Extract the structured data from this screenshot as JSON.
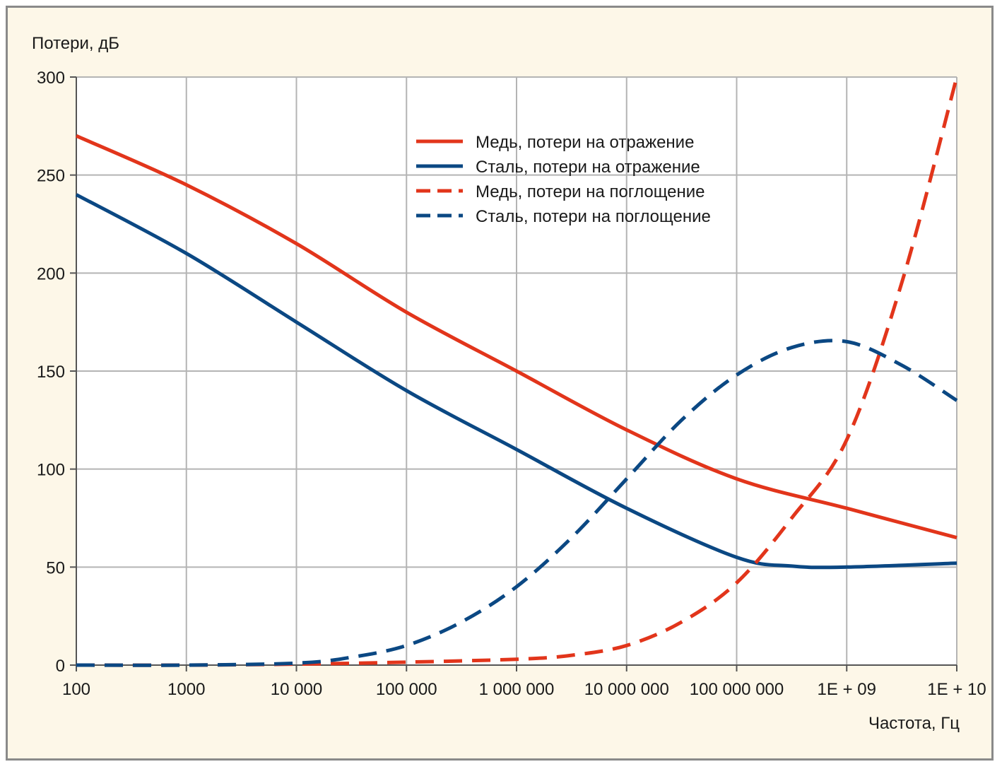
{
  "chart_data": {
    "type": "line",
    "ylabel": "Потери, дБ",
    "xlabel": "Частота, Гц",
    "x_scale": "log",
    "x_exponents": [
      2,
      3,
      4,
      5,
      6,
      7,
      8,
      9,
      10
    ],
    "x_tick_labels": [
      "100",
      "1000",
      "10 000",
      "100 000",
      "1 000 000",
      "10 000 000",
      "100 000 000",
      "1E + 09",
      "1E + 10"
    ],
    "ylim": [
      0,
      300
    ],
    "y_ticks": [
      0,
      50,
      100,
      150,
      200,
      250,
      300
    ],
    "y_tick_labels": [
      "0",
      "50",
      "100",
      "150",
      "200",
      "250",
      "300"
    ],
    "grid": true,
    "legend_position": "top-center",
    "series": [
      {
        "name": "Медь, потери на отражение",
        "color": "#e2351b",
        "style": "solid",
        "points": [
          [
            2,
            270
          ],
          [
            3,
            245
          ],
          [
            4,
            215
          ],
          [
            5,
            180
          ],
          [
            6,
            150
          ],
          [
            7,
            120
          ],
          [
            8,
            95
          ],
          [
            9,
            80
          ],
          [
            10,
            65
          ]
        ]
      },
      {
        "name": "Сталь, потери на отражение",
        "color": "#0b4883",
        "style": "solid",
        "points": [
          [
            2,
            240
          ],
          [
            3,
            210
          ],
          [
            4,
            175
          ],
          [
            5,
            140
          ],
          [
            6,
            110
          ],
          [
            7,
            80
          ],
          [
            8,
            55
          ],
          [
            8.5,
            50.5
          ],
          [
            9,
            50
          ],
          [
            10,
            52
          ]
        ]
      },
      {
        "name": "Медь, потери на поглощение",
        "color": "#e2351b",
        "style": "dashed",
        "points": [
          [
            2,
            0
          ],
          [
            3,
            0
          ],
          [
            4,
            0.5
          ],
          [
            5,
            1.5
          ],
          [
            6,
            3
          ],
          [
            6.5,
            5
          ],
          [
            7,
            10
          ],
          [
            7.5,
            22
          ],
          [
            8,
            42
          ],
          [
            8.5,
            75
          ],
          [
            9,
            115
          ],
          [
            9.5,
            195
          ],
          [
            10,
            300
          ]
        ]
      },
      {
        "name": "Сталь, потери на поглощение",
        "color": "#0b4883",
        "style": "dashed",
        "points": [
          [
            2,
            0
          ],
          [
            3,
            0
          ],
          [
            4,
            1
          ],
          [
            4.5,
            4
          ],
          [
            5,
            10
          ],
          [
            5.5,
            22
          ],
          [
            6,
            40
          ],
          [
            6.5,
            65
          ],
          [
            7,
            95
          ],
          [
            7.5,
            125
          ],
          [
            8,
            148
          ],
          [
            8.5,
            162
          ],
          [
            9,
            165
          ],
          [
            9.5,
            153
          ],
          [
            10,
            135
          ]
        ]
      }
    ]
  }
}
